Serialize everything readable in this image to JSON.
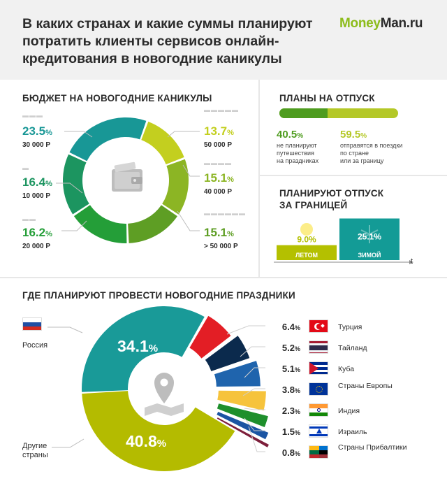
{
  "header": {
    "title": "В каких странах и какие суммы планируют потратить клиенты сервисов онлайн-кредитования в новогодние каникулы",
    "logo_part1": "Money",
    "logo_part2": "Man.ru"
  },
  "budget": {
    "title": "БЮДЖЕТ НА НОВОГОДНИЕ КАНИКУЛЫ",
    "pct_sign": "%",
    "icon": "wallet-icon"
  },
  "plans": {
    "title": "ПЛАНЫ НА ОТПУСК",
    "no_pct": "40.5",
    "no_desc": [
      "не планируют",
      "путешествия",
      "на праздниках"
    ],
    "yes_pct": "59.5",
    "yes_desc": [
      "отправятся в поездки",
      "по стране",
      "или за границу"
    ],
    "colors": {
      "no": "#4e9c1f",
      "yes": "#b4c827"
    }
  },
  "abroad": {
    "title_line1": "ПЛАНИРУЮТ ОТПУСК",
    "title_line2": "ЗА ГРАНИЦЕЙ",
    "axis_label": "t",
    "icons": [
      "sun-icon",
      "snowflake-icon"
    ]
  },
  "destinations": {
    "title": "ГДЕ ПЛАНИРУЮТ ПРОВЕСТИ НОВОГОДНИЕ ПРАЗДНИКИ",
    "icon": "map-pin-icon",
    "russia_label": "Россия",
    "other_label": [
      "Другие",
      "страны"
    ]
  },
  "chart_data": [
    {
      "type": "pie",
      "title": "БЮДЖЕТ НА НОВОГОДНИЕ КАНИКУЛЫ",
      "slices": [
        {
          "label": "50 000 Р",
          "value": 13.7,
          "color": "#c3cf1f"
        },
        {
          "label": "40 000 Р",
          "value": 15.1,
          "color": "#8cb524"
        },
        {
          "label": "> 50 000 Р",
          "value": 15.1,
          "color": "#5e9e24"
        },
        {
          "label": "20 000 Р",
          "value": 16.2,
          "color": "#249e38"
        },
        {
          "label": "10 000 Р",
          "value": 16.4,
          "color": "#1c9560"
        },
        {
          "label": "30 000 Р",
          "value": 23.5,
          "color": "#189796"
        }
      ]
    },
    {
      "type": "bar",
      "title": "ПЛАНИРУЮТ ОТПУСК ЗА ГРАНИЦЕЙ",
      "categories": [
        "ЛЕТОМ",
        "ЗИМОЙ"
      ],
      "values": [
        9.0,
        25.1
      ],
      "colors": [
        "#b4c000",
        "#139b96"
      ]
    },
    {
      "type": "pie",
      "title": "ГДЕ ПЛАНИРУЮТ ПРОВЕСТИ НОВОГОДНИЕ ПРАЗДНИКИ",
      "slices": [
        {
          "label": "Россия",
          "value": 34.1,
          "color": "#199a98"
        },
        {
          "label": "Турция",
          "value": 6.4,
          "color": "#e31e25"
        },
        {
          "label": "Тайланд",
          "value": 5.2,
          "color": "#0b2a4d"
        },
        {
          "label": "Куба",
          "value": 5.1,
          "color": "#1f64ad"
        },
        {
          "label": "Страны Европы",
          "value": 3.8,
          "color": "#f6c33c"
        },
        {
          "label": "Индия",
          "value": 2.3,
          "color": "#1e8f2c"
        },
        {
          "label": "Израиль",
          "value": 1.5,
          "color": "#1b55a3"
        },
        {
          "label": "Страны Прибалтики",
          "value": 0.8,
          "color": "#7d1f3b"
        },
        {
          "label": "Другие страны",
          "value": 40.8,
          "color": "#b4bb00"
        }
      ]
    }
  ]
}
